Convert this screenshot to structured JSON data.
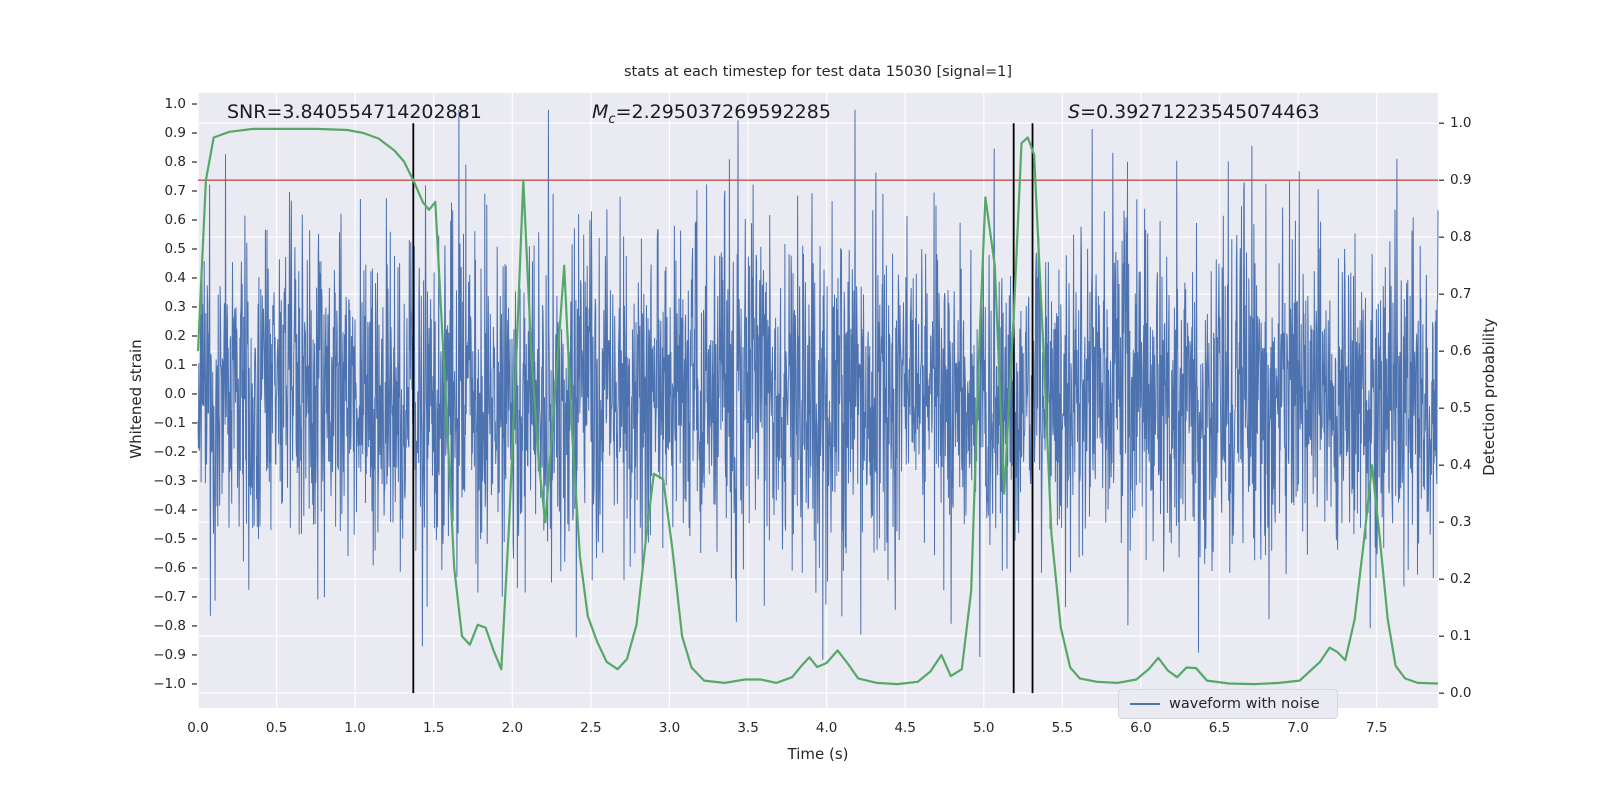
{
  "figure": {
    "background": "#ffffff",
    "plot_background": "#eaeaf2",
    "grid_color": "#ffffff",
    "text_color": "#262626"
  },
  "title": "stats at each timestep for test data 15030 [signal=1]",
  "axes": {
    "x": {
      "label": "Time (s)",
      "lim": [
        0,
        7.89
      ],
      "ticks": [
        0.0,
        0.5,
        1.0,
        1.5,
        2.0,
        2.5,
        3.0,
        3.5,
        4.0,
        4.5,
        5.0,
        5.5,
        6.0,
        6.5,
        7.0,
        7.5
      ]
    },
    "y_left": {
      "label": "Whitened strain",
      "lim": [
        -1.083,
        1.038
      ],
      "ticks": [
        1.0,
        0.9,
        0.8,
        0.7,
        0.6,
        0.5,
        0.4,
        0.3,
        0.2,
        0.1,
        0.0,
        -0.1,
        -0.2,
        -0.3,
        -0.4,
        -0.5,
        -0.6,
        -0.7,
        -0.8,
        -0.9,
        -1.0
      ]
    },
    "y_right": {
      "label": "Detection probability",
      "lim": [
        -0.026,
        1.053
      ],
      "ticks": [
        1.0,
        0.9,
        0.8,
        0.7,
        0.6,
        0.5,
        0.4,
        0.3,
        0.2,
        0.1,
        0.0
      ]
    }
  },
  "annotations": [
    {
      "prefix": "SNR",
      "sub": "",
      "value_text": "=3.840554714202881"
    },
    {
      "prefix": "M",
      "sub": "c",
      "value_text": "=2.295037269592285"
    },
    {
      "prefix": "S",
      "sub": "",
      "value_text": "=0.39271223545074463"
    }
  ],
  "legend": {
    "entries": [
      {
        "label": "waveform with noise",
        "color": "#4c72b0"
      }
    ]
  },
  "chart_data": {
    "type": "line",
    "title": "stats at each timestep for test data 15030 [signal=1]",
    "xlabel": "Time (s)",
    "ylabel": "Whitened strain",
    "ylabel_right": "Detection probability",
    "xlim": [
      0,
      7.89
    ],
    "ylim_left": [
      -1.083,
      1.038
    ],
    "ylim_right": [
      -0.026,
      1.053
    ],
    "grid": "on, white lines from right-axis ticks (0.0 to 1.0 step 0.1) and x ticks (step 0.5)",
    "series": [
      {
        "name": "waveform with noise",
        "axis": "left",
        "color": "#4c72b0",
        "style": "gaussian-noise-line",
        "noise_sigma": 0.28,
        "noise_seed": 15030,
        "noise_n": 3200,
        "t_range": [
          0,
          7.89
        ]
      },
      {
        "name": "detection probability",
        "axis": "right",
        "color": "#55a868",
        "points": [
          [
            0.0,
            0.6
          ],
          [
            0.05,
            0.9
          ],
          [
            0.1,
            0.975
          ],
          [
            0.2,
            0.985
          ],
          [
            0.35,
            0.99
          ],
          [
            0.55,
            0.99
          ],
          [
            0.75,
            0.99
          ],
          [
            0.95,
            0.988
          ],
          [
            1.05,
            0.983
          ],
          [
            1.15,
            0.973
          ],
          [
            1.25,
            0.952
          ],
          [
            1.31,
            0.933
          ],
          [
            1.37,
            0.9
          ],
          [
            1.43,
            0.862
          ],
          [
            1.47,
            0.848
          ],
          [
            1.51,
            0.862
          ],
          [
            1.58,
            0.5
          ],
          [
            1.63,
            0.22
          ],
          [
            1.68,
            0.1
          ],
          [
            1.73,
            0.085
          ],
          [
            1.78,
            0.12
          ],
          [
            1.83,
            0.115
          ],
          [
            1.88,
            0.075
          ],
          [
            1.93,
            0.042
          ],
          [
            1.98,
            0.3
          ],
          [
            2.03,
            0.62
          ],
          [
            2.07,
            0.9
          ],
          [
            2.12,
            0.6
          ],
          [
            2.17,
            0.4
          ],
          [
            2.21,
            0.3
          ],
          [
            2.27,
            0.52
          ],
          [
            2.33,
            0.75
          ],
          [
            2.38,
            0.46
          ],
          [
            2.43,
            0.24
          ],
          [
            2.48,
            0.135
          ],
          [
            2.54,
            0.09
          ],
          [
            2.6,
            0.055
          ],
          [
            2.67,
            0.042
          ],
          [
            2.73,
            0.06
          ],
          [
            2.79,
            0.12
          ],
          [
            2.85,
            0.27
          ],
          [
            2.9,
            0.385
          ],
          [
            2.96,
            0.375
          ],
          [
            3.02,
            0.25
          ],
          [
            3.08,
            0.1
          ],
          [
            3.14,
            0.045
          ],
          [
            3.22,
            0.022
          ],
          [
            3.35,
            0.018
          ],
          [
            3.48,
            0.024
          ],
          [
            3.58,
            0.024
          ],
          [
            3.68,
            0.018
          ],
          [
            3.78,
            0.028
          ],
          [
            3.84,
            0.048
          ],
          [
            3.89,
            0.063
          ],
          [
            3.94,
            0.046
          ],
          [
            4.0,
            0.053
          ],
          [
            4.07,
            0.075
          ],
          [
            4.14,
            0.05
          ],
          [
            4.2,
            0.026
          ],
          [
            4.32,
            0.018
          ],
          [
            4.45,
            0.016
          ],
          [
            4.58,
            0.02
          ],
          [
            4.66,
            0.038
          ],
          [
            4.73,
            0.067
          ],
          [
            4.79,
            0.03
          ],
          [
            4.86,
            0.042
          ],
          [
            4.92,
            0.18
          ],
          [
            4.97,
            0.6
          ],
          [
            5.01,
            0.87
          ],
          [
            5.07,
            0.75
          ],
          [
            5.13,
            0.35
          ],
          [
            5.19,
            0.66
          ],
          [
            5.24,
            0.965
          ],
          [
            5.28,
            0.975
          ],
          [
            5.32,
            0.945
          ],
          [
            5.38,
            0.6
          ],
          [
            5.43,
            0.28
          ],
          [
            5.49,
            0.115
          ],
          [
            5.55,
            0.045
          ],
          [
            5.61,
            0.026
          ],
          [
            5.72,
            0.02
          ],
          [
            5.85,
            0.018
          ],
          [
            5.97,
            0.024
          ],
          [
            6.05,
            0.042
          ],
          [
            6.11,
            0.062
          ],
          [
            6.17,
            0.04
          ],
          [
            6.23,
            0.028
          ],
          [
            6.29,
            0.045
          ],
          [
            6.35,
            0.044
          ],
          [
            6.42,
            0.022
          ],
          [
            6.56,
            0.017
          ],
          [
            6.72,
            0.016
          ],
          [
            6.88,
            0.018
          ],
          [
            7.01,
            0.022
          ],
          [
            7.08,
            0.04
          ],
          [
            7.14,
            0.055
          ],
          [
            7.2,
            0.08
          ],
          [
            7.25,
            0.072
          ],
          [
            7.3,
            0.058
          ],
          [
            7.36,
            0.13
          ],
          [
            7.42,
            0.27
          ],
          [
            7.47,
            0.4
          ],
          [
            7.52,
            0.27
          ],
          [
            7.57,
            0.13
          ],
          [
            7.62,
            0.048
          ],
          [
            7.68,
            0.026
          ],
          [
            7.76,
            0.018
          ],
          [
            7.89,
            0.017
          ]
        ]
      }
    ],
    "threshold_line": {
      "axis": "right",
      "value": 0.9,
      "color": "#c44e52"
    },
    "event_vlines": {
      "x": [
        1.37,
        5.19,
        5.31
      ],
      "color": "#000000",
      "span_right_axis": [
        0.0,
        1.0
      ]
    },
    "legend": {
      "position": "lower right area",
      "entries": [
        "waveform with noise"
      ]
    }
  }
}
